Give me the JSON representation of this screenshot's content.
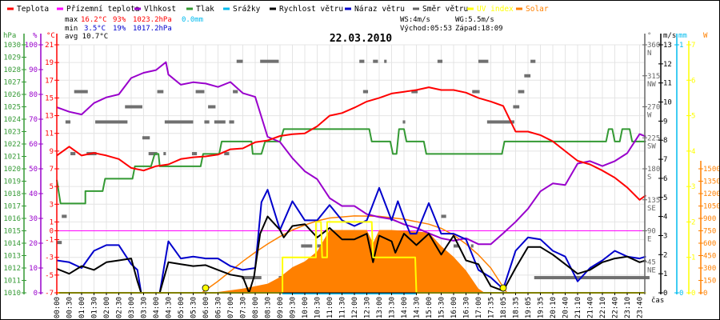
{
  "legend": [
    {
      "label": "Teplota",
      "color": "#ff0000"
    },
    {
      "label": "Přízemní teplota",
      "color": "#ff00ff"
    },
    {
      "label": "Vlhkost",
      "color": "#9900cc"
    },
    {
      "label": "Tlak",
      "color": "#339933"
    },
    {
      "label": "Srážky",
      "color": "#00bbee"
    },
    {
      "label": "Rychlost větru",
      "color": "#000000"
    },
    {
      "label": "Náraz větru",
      "color": "#0000cc"
    },
    {
      "label": "Směr větru",
      "color": "#666666"
    },
    {
      "label": "UV index",
      "color": "#ffff00"
    },
    {
      "label": "Solar",
      "color": "#ff8000"
    }
  ],
  "stats": {
    "max_label": "max",
    "max_temp": "16.2°C",
    "max_hum": "93%",
    "max_press": "1023.2hPa",
    "rain": "0.0mm",
    "min_label": "min",
    "min_temp": "3.5°C",
    "min_hum": "19%",
    "min_press": "1017.2hPa",
    "avg": "avg 10.7°C",
    "ws": "WS:4m/s",
    "wg": "WG:5.5m/s",
    "sunrise": "Východ:05:53",
    "sunset": "Západ:18:09"
  },
  "chart_data": {
    "type": "line",
    "title": "22.03.2010",
    "xlabel": "čas",
    "x_unit": "time tick index",
    "x_ticks": [
      "00:00",
      "00:30",
      "01:00",
      "01:30",
      "02:00",
      "02:30",
      "03:00",
      "03:30",
      "04:00",
      "04:30",
      "05:00",
      "05:30",
      "06:00",
      "06:30",
      "07:00",
      "07:30",
      "08:00",
      "08:30",
      "09:00",
      "09:30",
      "10:00",
      "10:30",
      "11:00",
      "11:30",
      "12:00",
      "12:30",
      "13:00",
      "13:30",
      "14:00",
      "14:30",
      "15:00",
      "15:30",
      "16:00",
      "16:30",
      "17:00",
      "17:35",
      "18:05",
      "18:35",
      "19:05",
      "19:35",
      "20:10",
      "20:40",
      "21:10",
      "21:40",
      "22:10",
      "22:40",
      "23:10",
      "23:40"
    ],
    "grid": true,
    "axes": {
      "hpa": {
        "unit": "hPa",
        "min": 1010,
        "max": 1030,
        "color": "#339933",
        "ticks": [
          "1010",
          "1011",
          "1012",
          "1013",
          "1014",
          "1015",
          "1016",
          "1017",
          "1018",
          "1019",
          "1020",
          "1021",
          "1022",
          "1023",
          "1024",
          "1025",
          "1026",
          "1027",
          "1028",
          "1029",
          "1030"
        ],
        "tick_values": [
          1010,
          1011,
          1012,
          1013,
          1014,
          1015,
          1016,
          1017,
          1018,
          1019,
          1020,
          1021,
          1022,
          1023,
          1024,
          1025,
          1026,
          1027,
          1028,
          1029,
          1030
        ]
      },
      "pct": {
        "unit": "%",
        "min": 0,
        "max": 100,
        "color": "#9900cc",
        "ticks": [
          "0",
          "10",
          "20",
          "30",
          "40",
          "50",
          "60",
          "70",
          "80",
          "90",
          "100"
        ],
        "tick_values": [
          0,
          10,
          20,
          30,
          40,
          50,
          60,
          70,
          80,
          90,
          100
        ]
      },
      "temp": {
        "unit": "°C",
        "min": -7,
        "max": 21,
        "color": "#ff0000",
        "ticks": [
          "-7",
          "-5",
          "-3",
          "-1",
          "0",
          "1",
          "3",
          "5",
          "7",
          "9",
          "11",
          "13",
          "15",
          "17",
          "19",
          "21"
        ],
        "tick_values": [
          -7,
          -5,
          -3,
          -1,
          0,
          1,
          3,
          5,
          7,
          9,
          11,
          13,
          15,
          17,
          19,
          21
        ]
      },
      "dir": {
        "unit": "°",
        "min": 0,
        "max": 360,
        "color": "#666666",
        "ticks": [
          "45",
          "90",
          "135",
          "180",
          "225",
          "270",
          "315",
          "360"
        ],
        "tick_values": [
          45,
          90,
          135,
          180,
          225,
          270,
          315,
          360
        ],
        "names": [
          "NE",
          "E",
          "SE",
          "S",
          "SW",
          "W",
          "NW",
          "N"
        ]
      },
      "wind": {
        "unit": "m/s",
        "min": 0,
        "max": 13,
        "color": "#000000",
        "ticks": [
          "0",
          "1",
          "2",
          "3",
          "4",
          "5",
          "6",
          "7",
          "8",
          "9",
          "10",
          "11",
          "12",
          "13"
        ],
        "tick_values": [
          0,
          1,
          2,
          3,
          4,
          5,
          6,
          7,
          8,
          9,
          10,
          11,
          12,
          13
        ]
      },
      "rain": {
        "unit": "mm",
        "min": 0,
        "max": 1,
        "color": "#00bbee",
        "ticks": [
          "0",
          "1"
        ],
        "tick_values": [
          0,
          1
        ]
      },
      "uv": {
        "unit": "",
        "min": 0,
        "max": 7,
        "color": "#ffff00",
        "ticks": [
          "0",
          "1",
          "2",
          "3",
          "4",
          "5",
          "6",
          "7"
        ],
        "tick_values": [
          0,
          1,
          2,
          3,
          4,
          5,
          6,
          7
        ]
      },
      "solar": {
        "unit": "W",
        "min": 0,
        "max": 3000,
        "color": "#ff8000",
        "ticks": [
          "0",
          "150",
          "300",
          "450",
          "600",
          "750",
          "900",
          "1050",
          "1200",
          "1350",
          "1500"
        ],
        "tick_values": [
          0,
          150,
          300,
          450,
          600,
          750,
          900,
          1050,
          1200,
          1350,
          1500
        ]
      }
    },
    "series": [
      {
        "name": "Solar",
        "axis": "solar",
        "color": "#ff8000",
        "kind": "area",
        "x": [
          12.5,
          13,
          15,
          16,
          17,
          18,
          19,
          20,
          21,
          22,
          23,
          24,
          25,
          25.5,
          26,
          27,
          28,
          29,
          30,
          31,
          32,
          33,
          34,
          34.5
        ],
        "y": [
          0,
          10,
          50,
          80,
          110,
          190,
          310,
          380,
          500,
          760,
          760,
          760,
          760,
          600,
          760,
          760,
          750,
          740,
          730,
          565,
          435,
          270,
          50,
          0
        ]
      },
      {
        "name": "Solar (theoretical)",
        "axis": "solar",
        "color": "#ff8000",
        "kind": "line",
        "x": [
          11.7,
          13,
          14,
          15,
          16,
          17,
          18,
          19,
          20,
          21,
          22,
          24,
          26,
          28,
          30,
          31,
          32,
          33,
          34,
          35,
          36.3
        ],
        "y": [
          0,
          140,
          260,
          380,
          490,
          590,
          680,
          760,
          820,
          870,
          905,
          930,
          925,
          890,
          830,
          780,
          700,
          590,
          460,
          300,
          0
        ]
      },
      {
        "name": "Tlak",
        "axis": "hpa",
        "color": "#339933",
        "kind": "line",
        "x": [
          0,
          0.3,
          2.3,
          2.3,
          3.7,
          3.9,
          6.1,
          6.3,
          7.6,
          7.9,
          8.2,
          8.3,
          11.6,
          11.8,
          13.1,
          13.3,
          15.7,
          15.8,
          16.5,
          16.8,
          18.0,
          18.3,
          25.2,
          25.4,
          26.9,
          27.1,
          27.4,
          27.6,
          28.0,
          28.2,
          29.6,
          29.8,
          35.9,
          36.1,
          44.3,
          44.5,
          44.8,
          45.0,
          45.4,
          45.6,
          46.2,
          46.4,
          47.5
        ],
        "y": [
          1019.1,
          1017.2,
          1017.2,
          1018.2,
          1018.2,
          1019.2,
          1019.2,
          1020.2,
          1020.2,
          1021.2,
          1021.2,
          1020.2,
          1020.2,
          1021.2,
          1021.2,
          1022.2,
          1022.2,
          1021.2,
          1021.2,
          1022.2,
          1022.2,
          1023.2,
          1023.2,
          1022.2,
          1022.2,
          1021.2,
          1021.2,
          1023.2,
          1023.2,
          1022.2,
          1022.2,
          1021.2,
          1021.2,
          1022.2,
          1022.2,
          1023.2,
          1023.2,
          1022.2,
          1022.2,
          1023.2,
          1023.2,
          1022.2,
          1022.2
        ]
      },
      {
        "name": "Vlhkost",
        "axis": "pct",
        "color": "#9900cc",
        "kind": "line",
        "x": [
          0,
          1,
          2,
          3,
          4,
          5,
          6,
          7,
          8,
          8.8,
          9,
          10,
          11,
          12,
          13,
          14,
          15,
          16,
          17,
          18,
          19,
          20,
          21,
          22,
          23,
          24,
          25,
          26,
          27,
          28,
          29,
          30,
          31,
          32,
          33,
          34,
          35,
          36,
          37,
          38,
          39,
          40,
          41,
          42,
          43,
          44,
          45,
          46,
          47,
          47.5
        ],
        "y": [
          74.8,
          73,
          71.9,
          76.5,
          78.8,
          80,
          86.6,
          88.7,
          89.8,
          93,
          88,
          83.9,
          84.9,
          84.4,
          83,
          85,
          80.5,
          79,
          62.9,
          60.8,
          54.3,
          49,
          45.8,
          38.2,
          35,
          35,
          31.7,
          30.5,
          29.7,
          27.6,
          26.2,
          24,
          22,
          21,
          22,
          19.6,
          19.6,
          24,
          28.6,
          33.9,
          40.9,
          44.1,
          43.5,
          52.1,
          53.1,
          51.1,
          53.1,
          56.3,
          64,
          63
        ]
      },
      {
        "name": "Teplota",
        "axis": "temp",
        "color": "#ff0000",
        "kind": "line",
        "x": [
          0,
          1,
          2,
          3,
          4,
          5,
          6,
          7,
          8,
          9,
          10,
          11,
          12,
          13,
          14,
          15,
          16,
          17,
          18,
          19,
          20,
          21,
          22,
          23,
          24,
          25,
          26,
          27,
          28,
          29,
          30,
          31,
          32,
          33,
          34,
          35,
          36,
          37,
          38,
          39,
          40,
          41,
          42,
          43,
          44,
          45,
          46,
          47,
          47.5
        ],
        "y": [
          8.5,
          9.5,
          8.5,
          8.8,
          8.5,
          8.1,
          7.1,
          6.8,
          7.3,
          7.5,
          8.1,
          8.3,
          8.4,
          8.6,
          9.2,
          9.3,
          10.0,
          10.2,
          10.7,
          10.9,
          11.0,
          11.8,
          13.0,
          13.3,
          13.9,
          14.6,
          15.0,
          15.5,
          15.7,
          15.9,
          16.2,
          15.9,
          15.9,
          15.6,
          15.0,
          14.6,
          14.1,
          11.2,
          11.2,
          10.8,
          10.1,
          9.0,
          7.9,
          7.5,
          6.8,
          6.0,
          4.9,
          3.5,
          4.0
        ]
      },
      {
        "name": "Náraz větru",
        "axis": "wind",
        "color": "#0000cc",
        "kind": "line",
        "x": [
          0,
          1,
          2,
          3,
          4,
          5,
          6,
          6.5,
          6.8,
          8.3,
          9,
          10,
          11,
          12,
          13,
          14,
          15,
          16,
          16.5,
          17,
          18,
          19,
          20,
          21,
          22,
          23,
          24,
          25,
          26,
          27,
          27.5,
          28,
          28.5,
          29,
          30,
          31,
          32,
          33,
          34,
          35,
          36,
          37,
          38,
          39,
          40,
          41,
          42,
          43,
          44,
          45,
          46,
          47,
          47.5
        ],
        "y": [
          1.7,
          1.6,
          1.3,
          2.2,
          2.5,
          2.5,
          1.5,
          1.2,
          0,
          0,
          2.7,
          1.8,
          1.9,
          1.8,
          1.8,
          1.4,
          1.2,
          1.3,
          4.75,
          5.4,
          3.3,
          4.8,
          3.8,
          3.8,
          4.6,
          3.8,
          3.5,
          3.8,
          5.5,
          3.8,
          4.8,
          3.9,
          3.1,
          3.1,
          4.7,
          3.1,
          3.1,
          2.8,
          1.2,
          0.8,
          0.2,
          2.2,
          2.9,
          2.8,
          2.2,
          1.9,
          0.6,
          1.3,
          1.7,
          2.2,
          1.9,
          1.8,
          1.9
        ]
      },
      {
        "name": "Rychlost větru",
        "axis": "wind",
        "color": "#000000",
        "kind": "line",
        "x": [
          0,
          1,
          2,
          3,
          4,
          5,
          6,
          6.5,
          6.8,
          8.3,
          9,
          10,
          11,
          12,
          13,
          14,
          15,
          15.5,
          15.9,
          16.4,
          17,
          18,
          18.3,
          19,
          20,
          21,
          22,
          23,
          24,
          25,
          25.5,
          26,
          27,
          27.3,
          28,
          29,
          30,
          31,
          32,
          33,
          34,
          35,
          36,
          37,
          38,
          39,
          40,
          41,
          42,
          43,
          44,
          45,
          46,
          47,
          47.5
        ],
        "y": [
          1.26,
          1.0,
          1.4,
          1.2,
          1.6,
          1.7,
          1.8,
          0.6,
          0,
          0,
          1.6,
          1.5,
          1.4,
          1.45,
          1.2,
          0.95,
          0.84,
          0,
          0.84,
          3.1,
          4.0,
          3.3,
          2.9,
          3.5,
          3.6,
          2.9,
          3.4,
          2.8,
          2.8,
          3.1,
          1.6,
          3.0,
          2.7,
          2.1,
          3.1,
          2.5,
          3.1,
          2.0,
          3.0,
          1.7,
          1.5,
          0.35,
          0.1,
          1.3,
          2.4,
          2.4,
          2.0,
          1.5,
          1.0,
          1.2,
          1.6,
          1.8,
          1.9,
          1.6,
          1.7
        ]
      },
      {
        "name": "UV index",
        "axis": "uv",
        "color": "#ffff00",
        "kind": "line",
        "x": [
          0,
          18.2,
          18.2,
          20.9,
          20.9,
          21.3,
          21.4,
          21.8,
          21.8,
          25.4,
          25.5,
          28.9,
          29,
          47.5
        ],
        "y": [
          0,
          0,
          1,
          1,
          2,
          2,
          1,
          1,
          2,
          2,
          1,
          1,
          0,
          0
        ]
      }
    ],
    "precipitation_mm": 0.0,
    "wind_direction_segments": [
      [
        0,
        0.4,
        73
      ],
      [
        0.4,
        0.8,
        111
      ],
      [
        0.7,
        1.1,
        248
      ],
      [
        1.1,
        1.5,
        202
      ],
      [
        1.4,
        2.5,
        292
      ],
      [
        2.4,
        3.2,
        202
      ],
      [
        3.1,
        5.7,
        248
      ],
      [
        5.5,
        6.9,
        270
      ],
      [
        6.9,
        7.5,
        225
      ],
      [
        7.4,
        8.1,
        202
      ],
      [
        8.1,
        8.6,
        292
      ],
      [
        8.6,
        8.8,
        202
      ],
      [
        8.7,
        11.0,
        248
      ],
      [
        10.9,
        11.3,
        202
      ],
      [
        11.2,
        11.9,
        292
      ],
      [
        11.9,
        12.3,
        248
      ],
      [
        12.2,
        12.8,
        270
      ],
      [
        12.7,
        13.6,
        248
      ],
      [
        13.5,
        13.9,
        202
      ],
      [
        13.9,
        14.3,
        248
      ],
      [
        14.2,
        14.6,
        292
      ],
      [
        14.5,
        15.0,
        336
      ],
      [
        14.9,
        16.5,
        22
      ],
      [
        16.4,
        17.9,
        336
      ],
      [
        17.9,
        19.7,
        22
      ],
      [
        19.7,
        20.6,
        68
      ],
      [
        20.5,
        21.0,
        22
      ],
      [
        21.0,
        21.3,
        68
      ],
      [
        21.3,
        22.3,
        22
      ],
      [
        22.4,
        22.6,
        68
      ],
      [
        22.7,
        23.8,
        22
      ],
      [
        23.8,
        33.3,
        22
      ],
      [
        24.4,
        24.8,
        336
      ],
      [
        24.7,
        25.1,
        292
      ],
      [
        25.5,
        25.9,
        336
      ],
      [
        26.4,
        26.6,
        336
      ],
      [
        27.9,
        28.1,
        248
      ],
      [
        28.6,
        29.1,
        292
      ],
      [
        29.4,
        29.9,
        68
      ],
      [
        30.7,
        31.1,
        336
      ],
      [
        31.0,
        31.4,
        111
      ],
      [
        32.0,
        32.4,
        68
      ],
      [
        33.4,
        33.6,
        68
      ],
      [
        33.5,
        34.1,
        292
      ],
      [
        34.0,
        34.8,
        336
      ],
      [
        34.7,
        36.9,
        248
      ],
      [
        36.8,
        37.3,
        270
      ],
      [
        37.2,
        37.7,
        292
      ],
      [
        37.7,
        38.2,
        315
      ],
      [
        38.2,
        38.6,
        336
      ],
      [
        38.5,
        47.8,
        22
      ]
    ],
    "markers": {
      "sunrise_index": 12,
      "sunset_index": 36
    }
  }
}
